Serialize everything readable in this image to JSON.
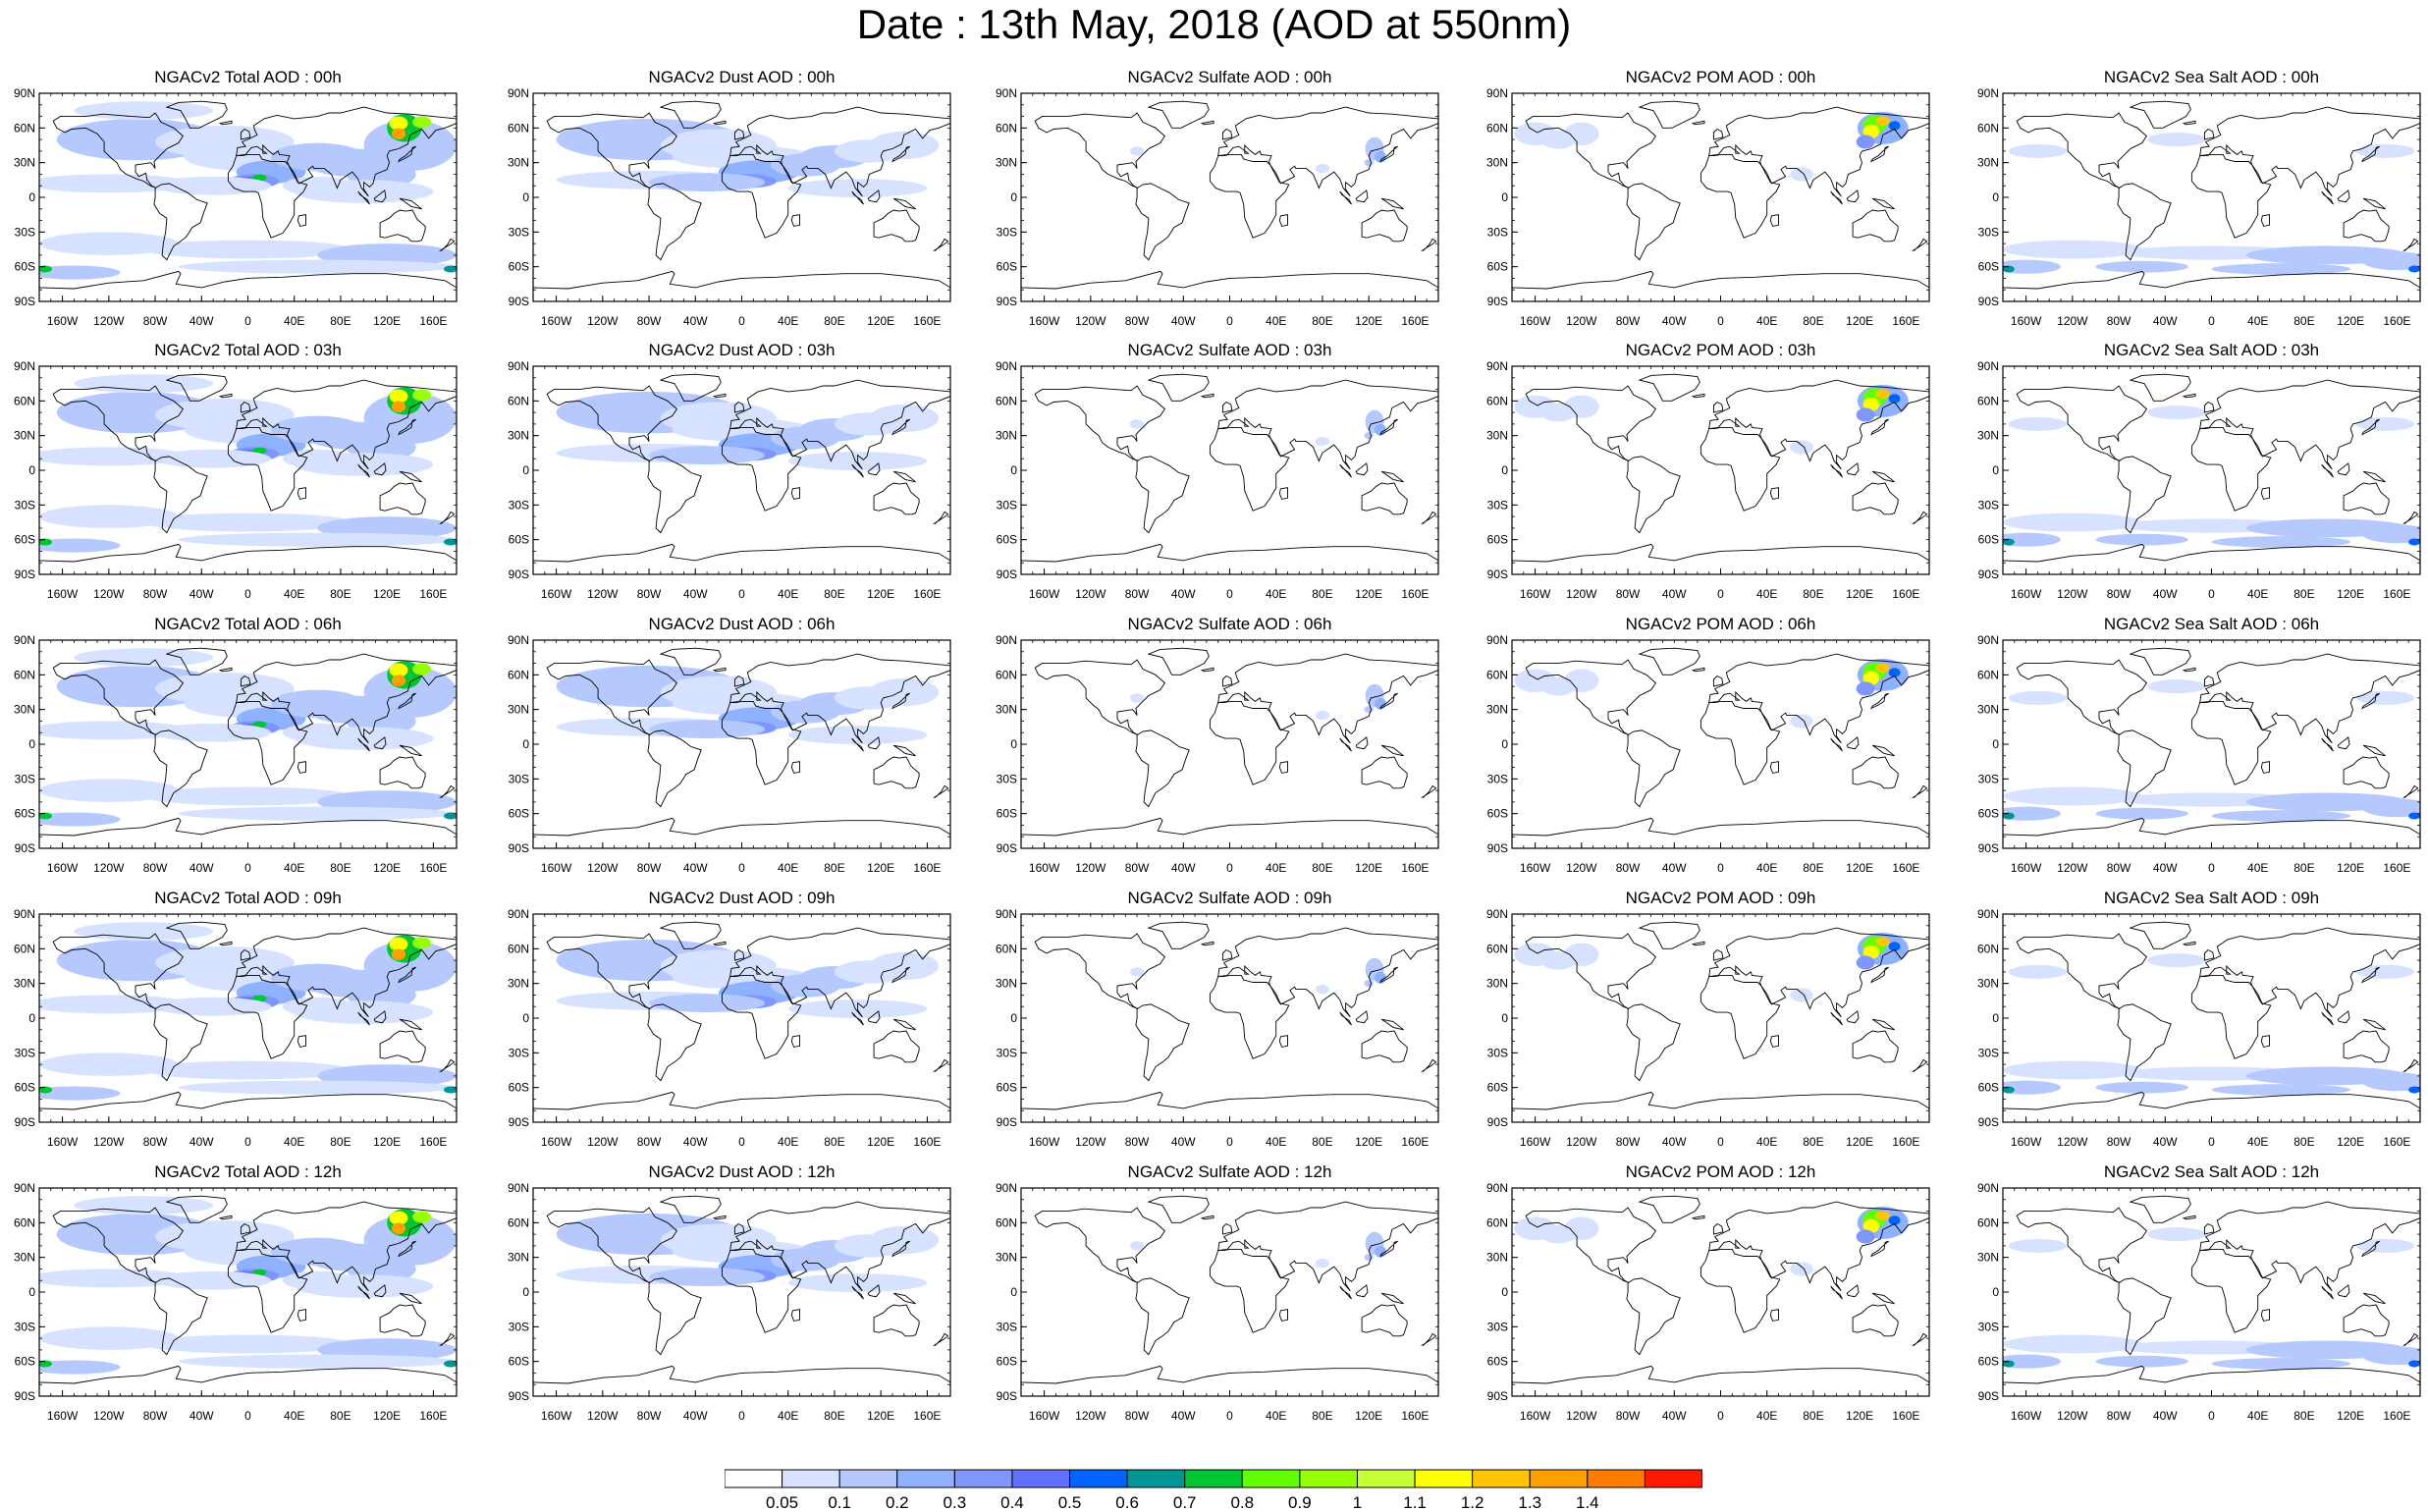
{
  "title": "Date : 13th May, 2018 (AOD at 550nm)",
  "panels": [
    {
      "title": "NGACv2 Total AOD : 00h",
      "species": "total"
    },
    {
      "title": "NGACv2 Dust AOD : 00h",
      "species": "dust"
    },
    {
      "title": "NGACv2 Sulfate AOD : 00h",
      "species": "sulfate"
    },
    {
      "title": "NGACv2 POM AOD : 00h",
      "species": "pom"
    },
    {
      "title": "NGACv2 Sea Salt AOD : 00h",
      "species": "seasalt"
    },
    {
      "title": "NGACv2 Total AOD : 03h",
      "species": "total"
    },
    {
      "title": "NGACv2 Dust AOD : 03h",
      "species": "dust"
    },
    {
      "title": "NGACv2 Sulfate AOD : 03h",
      "species": "sulfate"
    },
    {
      "title": "NGACv2 POM AOD : 03h",
      "species": "pom"
    },
    {
      "title": "NGACv2 Sea Salt AOD : 03h",
      "species": "seasalt"
    },
    {
      "title": "NGACv2 Total AOD : 06h",
      "species": "total"
    },
    {
      "title": "NGACv2 Dust AOD : 06h",
      "species": "dust"
    },
    {
      "title": "NGACv2 Sulfate AOD : 06h",
      "species": "sulfate"
    },
    {
      "title": "NGACv2 POM AOD : 06h",
      "species": "pom"
    },
    {
      "title": "NGACv2 Sea Salt AOD : 06h",
      "species": "seasalt"
    },
    {
      "title": "NGACv2 Total AOD : 09h",
      "species": "total"
    },
    {
      "title": "NGACv2 Dust AOD : 09h",
      "species": "dust"
    },
    {
      "title": "NGACv2 Sulfate AOD : 09h",
      "species": "sulfate"
    },
    {
      "title": "NGACv2 POM AOD : 09h",
      "species": "pom"
    },
    {
      "title": "NGACv2 Sea Salt  AOD : 09h",
      "species": "seasalt"
    },
    {
      "title": "NGACv2 Total AOD  : 12h",
      "species": "total"
    },
    {
      "title": "NGACv2 Dust AOD : 12h",
      "species": "dust"
    },
    {
      "title": "NGACv2 Sulfate AOD : 12h",
      "species": "sulfate"
    },
    {
      "title": "NGACv2 POM  AOD : 12h",
      "species": "pom"
    },
    {
      "title": "NGACv2 Sea Salt AOD : 12h",
      "species": "seasalt"
    }
  ],
  "lat_ticks": [
    "90N",
    "60N",
    "30N",
    "0",
    "30S",
    "60S",
    "90S"
  ],
  "lon_ticks": [
    "160W",
    "120W",
    "80W",
    "40W",
    "0",
    "40E",
    "80E",
    "120E",
    "160E"
  ],
  "lon_tick_values": [
    -160,
    -120,
    -80,
    -40,
    0,
    40,
    80,
    120,
    160
  ],
  "lat_tick_values": [
    90,
    60,
    30,
    0,
    -30,
    -60,
    -90
  ],
  "colorbar": {
    "labels": [
      "0.05",
      "0.1",
      "0.2",
      "0.3",
      "0.4",
      "0.5",
      "0.6",
      "0.7",
      "0.8",
      "0.9",
      "1",
      "1.1",
      "1.2",
      "1.3",
      "1.4"
    ],
    "colors": [
      "#ffffff",
      "#d6e2ff",
      "#b5c9ff",
      "#8eb2ff",
      "#7f96ff",
      "#6370ff",
      "#0063ff",
      "#009696",
      "#00c633",
      "#63ff00",
      "#96ff00",
      "#c6ff33",
      "#ffff00",
      "#ffc600",
      "#ffa000",
      "#ff7c00",
      "#ff1900"
    ]
  }
}
